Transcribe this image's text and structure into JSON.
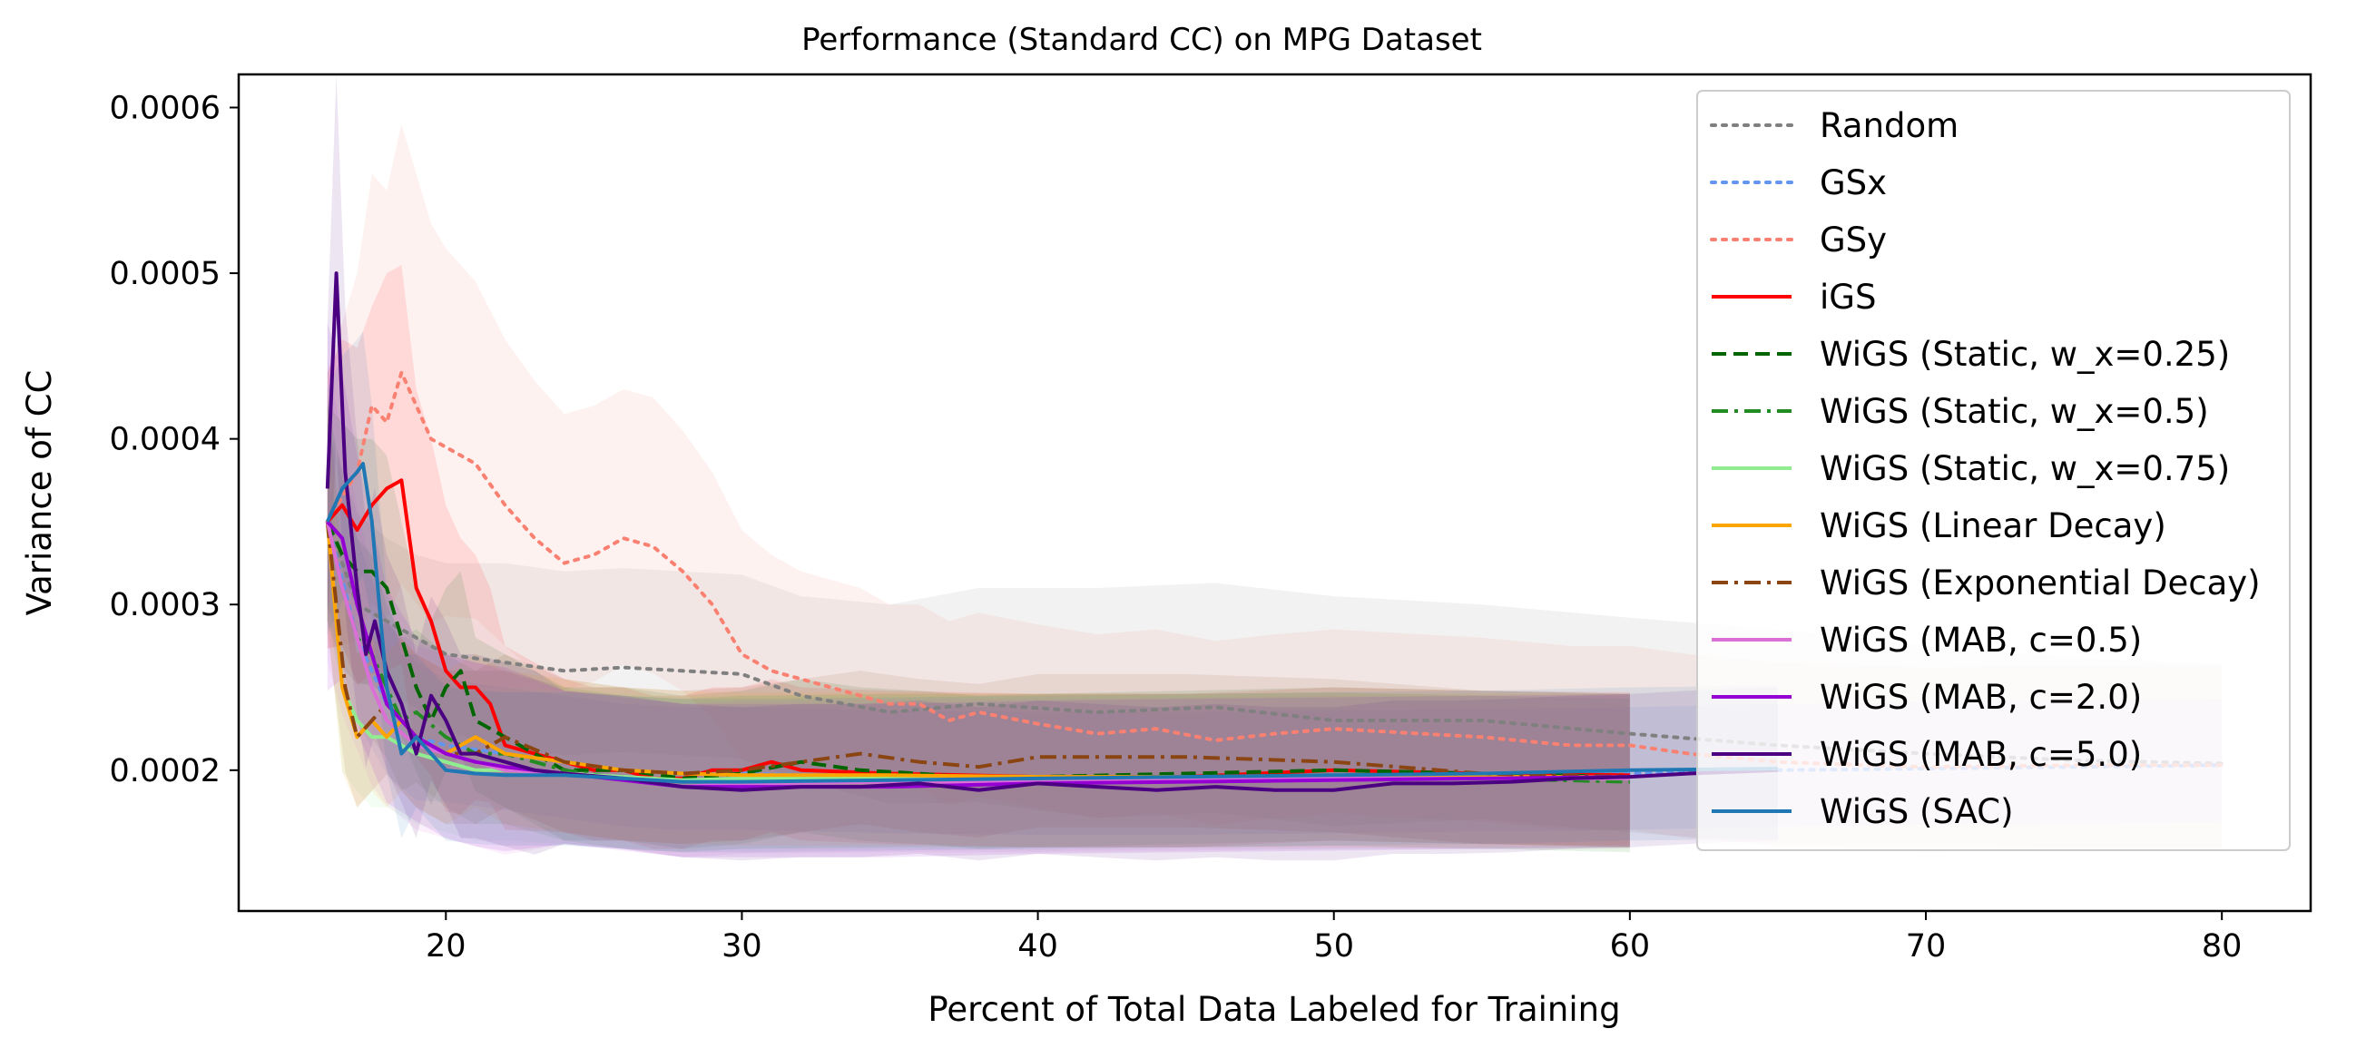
{
  "chart_data": {
    "type": "line",
    "title": "Performance (Standard CC) on MPG Dataset",
    "xlabel": "Percent of Total Data Labeled for Training",
    "ylabel": "Variance of CC",
    "xlim": [
      13,
      83
    ],
    "ylim": [
      0.000115,
      0.00062
    ],
    "xticks": [
      20,
      30,
      40,
      50,
      60,
      70,
      80
    ],
    "xtick_labels": [
      "20",
      "30",
      "40",
      "50",
      "60",
      "70",
      "80"
    ],
    "yticks": [
      0.0002,
      0.0003,
      0.0004,
      0.0005,
      0.0006
    ],
    "ytick_labels": [
      "0.0002",
      "0.0003",
      "0.0004",
      "0.0005",
      "0.0006"
    ],
    "grid": false,
    "legend_position": "top-right",
    "series": [
      {
        "name": "Random",
        "color": "#808080",
        "style": "dotted",
        "x": [
          16,
          17,
          18,
          19,
          20,
          22,
          24,
          26,
          28,
          30,
          32,
          35,
          38,
          42,
          46,
          50,
          55,
          60,
          65,
          70,
          75,
          80
        ],
        "y": [
          0.00035,
          0.0003,
          0.00029,
          0.00028,
          0.00027,
          0.000265,
          0.00026,
          0.000262,
          0.00026,
          0.000258,
          0.000245,
          0.000235,
          0.00024,
          0.000235,
          0.000238,
          0.00023,
          0.00023,
          0.000222,
          0.000215,
          0.00021,
          0.000206,
          0.000204
        ],
        "band": [
          6e-05,
          5.5e-05,
          5e-05,
          5e-05,
          5.5e-05,
          6e-05,
          6e-05,
          6e-05,
          6e-05,
          6e-05,
          6e-05,
          6.5e-05,
          7e-05,
          7.5e-05,
          7.5e-05,
          7.5e-05,
          7e-05,
          7e-05,
          7e-05,
          6.5e-05,
          6.2e-05,
          6e-05
        ]
      },
      {
        "name": "GSx",
        "color": "#6495ed",
        "style": "dotted",
        "x": [
          16,
          17,
          18,
          19,
          20,
          22,
          24,
          26,
          28,
          30,
          35,
          40,
          45,
          50,
          55,
          60,
          65,
          70,
          75,
          80
        ],
        "y": [
          0.00035,
          0.00028,
          0.00024,
          0.00022,
          0.000215,
          0.00021,
          0.000205,
          0.0002,
          0.000198,
          0.000198,
          0.000196,
          0.000195,
          0.000195,
          0.000196,
          0.000197,
          0.000198,
          0.0002,
          0.000201,
          0.000202,
          0.000203
        ],
        "band": [
          6e-05,
          6e-05,
          5e-05,
          4.5e-05,
          4e-05,
          4e-05,
          4e-05,
          4e-05,
          4e-05,
          4e-05,
          4e-05,
          4e-05,
          4e-05,
          4e-05,
          4e-05,
          4e-05,
          4e-05,
          4e-05,
          4e-05,
          4e-05
        ]
      },
      {
        "name": "GSy",
        "color": "#fa8072",
        "style": "dotted",
        "x": [
          16,
          17,
          17.5,
          18,
          18.5,
          19,
          19.5,
          20,
          21,
          22,
          23,
          24,
          25,
          26,
          27,
          28,
          29,
          30,
          31,
          32,
          33,
          34,
          35,
          36,
          37,
          38,
          40,
          42,
          44,
          46,
          48,
          50,
          52,
          55,
          58,
          60,
          62,
          65,
          68,
          70,
          75,
          80
        ],
        "y": [
          0.00035,
          0.00038,
          0.00042,
          0.00041,
          0.00044,
          0.00042,
          0.0004,
          0.000395,
          0.000385,
          0.00036,
          0.00034,
          0.000325,
          0.00033,
          0.00034,
          0.000335,
          0.00032,
          0.0003,
          0.00027,
          0.00026,
          0.000255,
          0.00025,
          0.000245,
          0.00024,
          0.00024,
          0.00023,
          0.000235,
          0.000228,
          0.000222,
          0.000225,
          0.000218,
          0.000222,
          0.000225,
          0.000223,
          0.00022,
          0.000215,
          0.000215,
          0.00021,
          0.000205,
          0.000203,
          0.000202,
          0.000203,
          0.000203
        ],
        "band": [
          9e-05,
          0.00012,
          0.00014,
          0.00014,
          0.00015,
          0.00014,
          0.00013,
          0.00012,
          0.00011,
          0.0001,
          9.5e-05,
          9e-05,
          9e-05,
          9e-05,
          9e-05,
          8.5e-05,
          8e-05,
          7.5e-05,
          7e-05,
          6.5e-05,
          6.5e-05,
          6.5e-05,
          6e-05,
          6e-05,
          6e-05,
          6e-05,
          6e-05,
          6e-05,
          6e-05,
          6e-05,
          6e-05,
          6e-05,
          6e-05,
          6e-05,
          6e-05,
          6e-05,
          6e-05,
          6e-05,
          6e-05,
          6e-05,
          6e-05,
          6e-05
        ]
      },
      {
        "name": "iGS",
        "color": "#ff0000",
        "style": "solid",
        "x": [
          16,
          16.5,
          17,
          17.5,
          18,
          18.5,
          19,
          19.5,
          20,
          20.5,
          21,
          21.5,
          22,
          23,
          24,
          25,
          26,
          27,
          28,
          29,
          30,
          31,
          32,
          35,
          40,
          45,
          50,
          55,
          60
        ],
        "y": [
          0.00035,
          0.00036,
          0.000345,
          0.00036,
          0.00037,
          0.000375,
          0.00031,
          0.00029,
          0.00026,
          0.00025,
          0.00025,
          0.00024,
          0.000215,
          0.00021,
          0.000205,
          0.0002,
          0.0002,
          0.000195,
          0.000195,
          0.0002,
          0.0002,
          0.000205,
          0.0002,
          0.000198,
          0.000196,
          0.000196,
          0.0002,
          0.000198,
          0.000197
        ],
        "band": [
          9e-05,
          0.0001,
          0.00011,
          0.00012,
          0.00013,
          0.00013,
          0.00012,
          0.00011,
          0.0001,
          9e-05,
          8e-05,
          7e-05,
          6e-05,
          5.5e-05,
          5e-05,
          5e-05,
          5e-05,
          5e-05,
          5e-05,
          5e-05,
          5e-05,
          5e-05,
          5e-05,
          5e-05,
          5e-05,
          5e-05,
          5e-05,
          5e-05,
          5e-05
        ]
      },
      {
        "name": "WiGS (Static, w_x=0.25)",
        "color": "#006400",
        "style": "dashed",
        "x": [
          16,
          16.5,
          17,
          17.5,
          18,
          18.5,
          19,
          19.5,
          20,
          20.5,
          21,
          22,
          23,
          24,
          26,
          28,
          30,
          32,
          34,
          36,
          38,
          40,
          45,
          50,
          55,
          60
        ],
        "y": [
          0.00035,
          0.00033,
          0.00032,
          0.00032,
          0.00031,
          0.00028,
          0.00025,
          0.00023,
          0.00025,
          0.00026,
          0.00023,
          0.00022,
          0.00021,
          0.0002,
          0.0002,
          0.000195,
          0.000198,
          0.000205,
          0.0002,
          0.000198,
          0.000195,
          0.000196,
          0.000198,
          0.0002,
          0.000198,
          0.000196
        ],
        "band": [
          7e-05,
          8e-05,
          8e-05,
          8e-05,
          8e-05,
          7e-05,
          6e-05,
          6e-05,
          6e-05,
          6e-05,
          5e-05,
          5e-05,
          5e-05,
          5e-05,
          5e-05,
          5e-05,
          5e-05,
          5e-05,
          5e-05,
          5e-05,
          5e-05,
          5e-05,
          5e-05,
          5e-05,
          5e-05,
          5e-05
        ]
      },
      {
        "name": "WiGS (Static, w_x=0.5)",
        "color": "#228b22",
        "style": "dashdot",
        "x": [
          16,
          16.5,
          17,
          17.5,
          18,
          18.5,
          19,
          20,
          21,
          22,
          24,
          26,
          28,
          30,
          35,
          40,
          45,
          50,
          55,
          60
        ],
        "y": [
          0.00035,
          0.00031,
          0.00028,
          0.00027,
          0.00025,
          0.00023,
          0.000235,
          0.00022,
          0.00021,
          0.00021,
          0.0002,
          0.000195,
          0.000193,
          0.000195,
          0.000196,
          0.000196,
          0.000196,
          0.000197,
          0.000195,
          0.000193
        ],
        "band": [
          7e-05,
          7e-05,
          6e-05,
          6e-05,
          5e-05,
          5e-05,
          5e-05,
          5e-05,
          5e-05,
          5e-05,
          5e-05,
          5e-05,
          5e-05,
          5e-05,
          5e-05,
          5e-05,
          5e-05,
          5e-05,
          5e-05,
          5e-05
        ]
      },
      {
        "name": "WiGS (Static, w_x=0.75)",
        "color": "#90ee90",
        "style": "solid",
        "x": [
          16,
          16.5,
          17,
          17.5,
          18,
          19,
          20,
          21,
          22,
          24,
          26,
          28,
          30,
          35,
          40,
          45,
          50,
          55,
          60
        ],
        "y": [
          0.00035,
          0.00025,
          0.00023,
          0.00022,
          0.00022,
          0.00021,
          0.000205,
          0.0002,
          0.0002,
          0.000198,
          0.000196,
          0.000194,
          0.000195,
          0.000195,
          0.000194,
          0.000195,
          0.000195,
          0.000195,
          0.000195
        ],
        "band": [
          7e-05,
          6e-05,
          5e-05,
          5e-05,
          5e-05,
          5e-05,
          5e-05,
          5e-05,
          5e-05,
          5e-05,
          5e-05,
          5e-05,
          5e-05,
          5e-05,
          5e-05,
          5e-05,
          5e-05,
          5e-05,
          5e-05
        ]
      },
      {
        "name": "WiGS (Linear Decay)",
        "color": "#ffa500",
        "style": "solid",
        "x": [
          16,
          16.5,
          17,
          17.5,
          18,
          18.5,
          19,
          20,
          21,
          22,
          24,
          26,
          28,
          30,
          35,
          40,
          45,
          50,
          55,
          60
        ],
        "y": [
          0.00035,
          0.00025,
          0.00022,
          0.00023,
          0.00022,
          0.00023,
          0.00022,
          0.00021,
          0.00022,
          0.00021,
          0.000205,
          0.0002,
          0.000198,
          0.000197,
          0.000197,
          0.000196,
          0.000196,
          0.000196,
          0.000196,
          0.000196
        ],
        "band": [
          7e-05,
          6e-05,
          5e-05,
          5e-05,
          5e-05,
          5e-05,
          5e-05,
          5e-05,
          5e-05,
          5e-05,
          5e-05,
          5e-05,
          5e-05,
          5e-05,
          5e-05,
          5e-05,
          5e-05,
          5e-05,
          5e-05,
          5e-05
        ]
      },
      {
        "name": "WiGS (Exponential Decay)",
        "color": "#8b4513",
        "style": "dashdot",
        "x": [
          16,
          16.3,
          16.6,
          17,
          17.5,
          18,
          19,
          20,
          21,
          22,
          24,
          26,
          28,
          30,
          32,
          34,
          36,
          38,
          40,
          45,
          50,
          55,
          60
        ],
        "y": [
          0.00035,
          0.0003,
          0.00025,
          0.00022,
          0.00023,
          0.00024,
          0.00022,
          0.00021,
          0.00021,
          0.00022,
          0.000205,
          0.0002,
          0.000198,
          0.0002,
          0.000205,
          0.00021,
          0.000205,
          0.000202,
          0.000208,
          0.000208,
          0.000205,
          0.000198,
          0.000196
        ],
        "band": [
          8e-05,
          7e-05,
          6e-05,
          5e-05,
          5e-05,
          5e-05,
          5e-05,
          5e-05,
          5e-05,
          5e-05,
          5e-05,
          5e-05,
          5e-05,
          5e-05,
          5e-05,
          5e-05,
          5e-05,
          5e-05,
          5e-05,
          5e-05,
          5e-05,
          5e-05,
          5e-05
        ]
      },
      {
        "name": "WiGS (MAB, c=0.5)",
        "color": "#da70d6",
        "style": "solid",
        "x": [
          16,
          16.5,
          17,
          17.5,
          18,
          19,
          20,
          21,
          22,
          24,
          26,
          28,
          30,
          35,
          40,
          45,
          50,
          55,
          60
        ],
        "y": [
          0.00035,
          0.00031,
          0.00028,
          0.00025,
          0.00023,
          0.000215,
          0.00021,
          0.000205,
          0.0002,
          0.000198,
          0.000195,
          0.00019,
          0.000192,
          0.000193,
          0.000193,
          0.000194,
          0.000195,
          0.000195,
          0.000195
        ],
        "band": [
          0.0001,
          9e-05,
          8e-05,
          7e-05,
          6e-05,
          6e-05,
          6e-05,
          6e-05,
          6e-05,
          5e-05,
          5e-05,
          5e-05,
          5e-05,
          5e-05,
          5e-05,
          5e-05,
          5e-05,
          5e-05,
          5e-05
        ]
      },
      {
        "name": "WiGS (MAB, c=2.0)",
        "color": "#9400d3",
        "style": "solid",
        "x": [
          16,
          16.5,
          17,
          17.5,
          18,
          19,
          20,
          21,
          22,
          24,
          26,
          28,
          30,
          35,
          40,
          45,
          50,
          55,
          60
        ],
        "y": [
          0.00035,
          0.00034,
          0.0003,
          0.00027,
          0.00024,
          0.00022,
          0.00021,
          0.000205,
          0.000202,
          0.000198,
          0.000194,
          0.00019,
          0.00019,
          0.00019,
          0.000192,
          0.000193,
          0.000194,
          0.000195,
          0.000196
        ],
        "band": [
          0.00012,
          0.0001,
          9e-05,
          8e-05,
          7e-05,
          6e-05,
          6e-05,
          6e-05,
          6e-05,
          5e-05,
          5e-05,
          5e-05,
          5e-05,
          5e-05,
          5e-05,
          5e-05,
          5e-05,
          5e-05,
          5e-05
        ]
      },
      {
        "name": "WiGS (MAB, c=5.0)",
        "color": "#4b0082",
        "style": "solid",
        "x": [
          16,
          16.3,
          16.6,
          17,
          17.3,
          17.6,
          18,
          18.5,
          19,
          19.5,
          20,
          20.5,
          21,
          22,
          23,
          24,
          26,
          28,
          30,
          32,
          34,
          36,
          38,
          40,
          42,
          44,
          46,
          48,
          50,
          52,
          54,
          56,
          58,
          60,
          62,
          65
        ],
        "y": [
          0.00037,
          0.0005,
          0.00038,
          0.00031,
          0.00027,
          0.00029,
          0.00026,
          0.00024,
          0.00021,
          0.000245,
          0.00023,
          0.00021,
          0.00021,
          0.000205,
          0.0002,
          0.000198,
          0.000195,
          0.00019,
          0.000188,
          0.00019,
          0.00019,
          0.000192,
          0.000188,
          0.000192,
          0.00019,
          0.000188,
          0.00019,
          0.000188,
          0.000188,
          0.000192,
          0.000192,
          0.000193,
          0.000195,
          0.000196,
          0.000198,
          0.0002
        ],
        "band": [
          0.0001,
          0.00012,
          0.0001,
          9e-05,
          8e-05,
          8e-05,
          7e-05,
          7e-05,
          6e-05,
          6e-05,
          6e-05,
          6e-05,
          6e-05,
          6e-05,
          6e-05,
          5e-05,
          5e-05,
          5e-05,
          5e-05,
          5e-05,
          5e-05,
          5e-05,
          5e-05,
          5e-05,
          5e-05,
          5e-05,
          5e-05,
          5e-05,
          5e-05,
          5e-05,
          5e-05,
          5e-05,
          5e-05,
          5e-05,
          5e-05,
          5e-05
        ]
      },
      {
        "name": "WiGS (SAC)",
        "color": "#1f77b4",
        "style": "solid",
        "x": [
          16,
          16.5,
          17,
          17.2,
          17.5,
          18,
          18.5,
          19,
          19.5,
          20,
          21,
          22,
          24,
          26,
          28,
          30,
          35,
          40,
          45,
          50,
          55,
          60,
          65
        ],
        "y": [
          0.00035,
          0.00037,
          0.00038,
          0.000385,
          0.00035,
          0.00025,
          0.00021,
          0.00022,
          0.00021,
          0.0002,
          0.000198,
          0.000197,
          0.000197,
          0.000195,
          0.000193,
          0.000193,
          0.000194,
          0.000195,
          0.000196,
          0.000197,
          0.000198,
          0.0002,
          0.000201
        ],
        "band": [
          8e-05,
          8e-05,
          8e-05,
          8e-05,
          7e-05,
          6e-05,
          6e-05,
          5e-05,
          5e-05,
          5e-05,
          5e-05,
          5e-05,
          5e-05,
          5e-05,
          5e-05,
          5e-05,
          5e-05,
          5e-05,
          5e-05,
          5e-05,
          5e-05,
          5e-05,
          5e-05
        ]
      }
    ]
  }
}
